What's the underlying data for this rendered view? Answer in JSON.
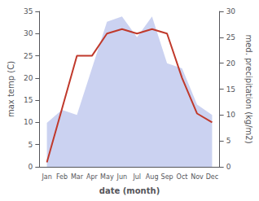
{
  "chart_data": {
    "type": "line",
    "categories": [
      "Jan",
      "Feb",
      "Mar",
      "Apr",
      "May",
      "Jun",
      "Jul",
      "Aug",
      "Sep",
      "Oct",
      "Nov",
      "Dec"
    ],
    "series": [
      {
        "type": "area",
        "color": "#c5cdf0",
        "axis": "y2",
        "values": [
          8.5,
          11,
          10,
          19,
          28,
          29,
          25,
          29,
          20,
          19,
          12,
          10
        ]
      },
      {
        "type": "line",
        "color": "#c0392b",
        "values": [
          1,
          13,
          25,
          25,
          30,
          31,
          30,
          31,
          30,
          20,
          12,
          10
        ]
      }
    ],
    "xlabel": "date (month)",
    "ylabel": "max temp (C)",
    "y2label": "med. precipitation (kg/m2)",
    "ylim": [
      0,
      35
    ],
    "yticks": [
      0,
      5,
      10,
      15,
      20,
      25,
      30,
      35
    ],
    "y2lim": [
      0,
      30
    ],
    "y2ticks": [
      0,
      5,
      10,
      15,
      20,
      25,
      30
    ],
    "grid": false
  }
}
